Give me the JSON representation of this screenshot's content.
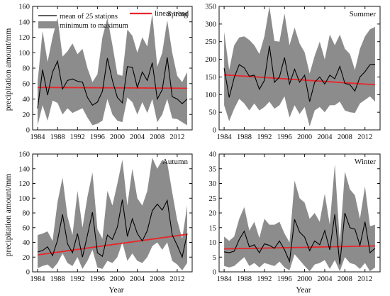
{
  "figure": {
    "ylabel": "precipitation amount/mm",
    "xlabel": "Year",
    "legend": {
      "mean_label": "mean of 25 stations",
      "range_label": "minimum to maximum",
      "trend_label": "linear trend"
    }
  },
  "colors": {
    "band": "#8c8c8c",
    "mean": "#000000",
    "trend": "#e8262b",
    "axis": "#111111"
  },
  "chart_data": [
    {
      "type": "area",
      "title": "Spring",
      "x": [
        1984,
        1985,
        1986,
        1987,
        1988,
        1989,
        1990,
        1991,
        1992,
        1993,
        1994,
        1995,
        1996,
        1997,
        1998,
        1999,
        2000,
        2001,
        2002,
        2003,
        2004,
        2005,
        2006,
        2007,
        2008,
        2009,
        2010,
        2011,
        2012,
        2013,
        2014
      ],
      "series": [
        {
          "name": "mean of 25 stations",
          "values": [
            28,
            78,
            45,
            75,
            89,
            53,
            64,
            66,
            63,
            62,
            42,
            32,
            36,
            50,
            93,
            64,
            42,
            35,
            82,
            81,
            55,
            75,
            64,
            87,
            40,
            52,
            94,
            43,
            40,
            34,
            40
          ]
        },
        {
          "name": "minimum to maximum",
          "values_min": [
            6,
            32,
            12,
            38,
            35,
            20,
            28,
            22,
            25,
            28,
            16,
            6,
            8,
            12,
            40,
            20,
            12,
            10,
            42,
            36,
            20,
            36,
            22,
            40,
            10,
            20,
            40,
            15,
            14,
            10,
            6
          ],
          "values_max": [
            62,
            128,
            88,
            120,
            145,
            95,
            102,
            112,
            98,
            105,
            80,
            62,
            72,
            120,
            145,
            110,
            72,
            70,
            130,
            122,
            100,
            120,
            108,
            150,
            82,
            100,
            142,
            100,
            70,
            62,
            75
          ]
        }
      ],
      "trend": {
        "name": "linear trend",
        "start": [
          1984,
          55
        ],
        "end": [
          2014,
          54
        ]
      },
      "xlim": [
        1983,
        2015
      ],
      "ylim": [
        0,
        160
      ],
      "xticks": [
        1984,
        1988,
        1992,
        1996,
        2000,
        2004,
        2008,
        2012
      ],
      "yticks": [
        0,
        20,
        40,
        60,
        80,
        100,
        120,
        140,
        160
      ]
    },
    {
      "type": "area",
      "title": "Summer",
      "x": [
        1984,
        1985,
        1986,
        1987,
        1988,
        1989,
        1990,
        1991,
        1992,
        1993,
        1994,
        1995,
        1996,
        1997,
        1998,
        1999,
        2000,
        2001,
        2002,
        2003,
        2004,
        2005,
        2006,
        2007,
        2008,
        2009,
        2010,
        2011,
        2012,
        2013,
        2014
      ],
      "series": [
        {
          "name": "mean of 25 stations",
          "values": [
            175,
            92,
            148,
            185,
            176,
            152,
            155,
            115,
            140,
            238,
            135,
            150,
            205,
            130,
            172,
            135,
            155,
            80,
            135,
            150,
            130,
            155,
            145,
            180,
            132,
            128,
            110,
            150,
            165,
            185,
            186
          ]
        },
        {
          "name": "minimum to maximum",
          "values_min": [
            70,
            25,
            60,
            88,
            75,
            55,
            75,
            55,
            65,
            80,
            60,
            70,
            95,
            35,
            70,
            45,
            65,
            10,
            55,
            65,
            50,
            70,
            70,
            80,
            55,
            50,
            48,
            75,
            85,
            95,
            80
          ],
          "values_max": [
            278,
            170,
            240,
            262,
            265,
            255,
            240,
            215,
            265,
            350,
            252,
            250,
            330,
            240,
            290,
            245,
            220,
            160,
            210,
            250,
            200,
            270,
            240,
            270,
            230,
            215,
            170,
            230,
            265,
            285,
            292
          ]
        }
      ],
      "trend": {
        "name": "linear trend",
        "start": [
          1984,
          156
        ],
        "end": [
          2014,
          128
        ]
      },
      "xlim": [
        1983,
        2015
      ],
      "ylim": [
        0,
        350
      ],
      "xticks": [
        1984,
        1988,
        1992,
        1996,
        2000,
        2004,
        2008,
        2012
      ],
      "yticks": [
        0,
        50,
        100,
        150,
        200,
        250,
        300,
        350
      ]
    },
    {
      "type": "area",
      "title": "Autumn",
      "x": [
        1984,
        1985,
        1986,
        1987,
        1988,
        1989,
        1990,
        1991,
        1992,
        1993,
        1994,
        1995,
        1996,
        1997,
        1998,
        1999,
        2000,
        2001,
        2002,
        2003,
        2004,
        2005,
        2006,
        2007,
        2008,
        2009,
        2010,
        2011,
        2012,
        2013,
        2014
      ],
      "series": [
        {
          "name": "mean of 25 stations",
          "values": [
            27,
            29,
            34,
            22,
            43,
            78,
            38,
            26,
            52,
            20,
            50,
            81,
            26,
            21,
            50,
            44,
            61,
            98,
            48,
            72,
            52,
            42,
            56,
            83,
            92,
            84,
            97,
            50,
            36,
            20,
            52
          ]
        },
        {
          "name": "minimum to maximum",
          "values_min": [
            5,
            8,
            10,
            4,
            12,
            25,
            12,
            8,
            20,
            4,
            15,
            30,
            6,
            4,
            15,
            12,
            20,
            40,
            15,
            25,
            15,
            12,
            20,
            35,
            40,
            30,
            40,
            15,
            10,
            2,
            12
          ],
          "values_max": [
            50,
            52,
            55,
            42,
            95,
            128,
            75,
            50,
            110,
            60,
            102,
            135,
            58,
            45,
            110,
            90,
            120,
            152,
            90,
            140,
            100,
            90,
            110,
            155,
            140,
            152,
            148,
            108,
            70,
            45,
            90
          ]
        }
      ],
      "trend": {
        "name": "linear trend",
        "start": [
          1984,
          23
        ],
        "end": [
          2014,
          51
        ]
      },
      "xlim": [
        1983,
        2015
      ],
      "ylim": [
        0,
        160
      ],
      "xticks": [
        1984,
        1988,
        1992,
        1996,
        2000,
        2004,
        2008,
        2012
      ],
      "yticks": [
        0,
        20,
        40,
        60,
        80,
        100,
        120,
        140,
        160
      ]
    },
    {
      "type": "area",
      "title": "Winter",
      "x": [
        1984,
        1985,
        1986,
        1987,
        1988,
        1989,
        1990,
        1991,
        1992,
        1993,
        1994,
        1995,
        1996,
        1997,
        1998,
        1999,
        2000,
        2001,
        2002,
        2003,
        2004,
        2005,
        2006,
        2007,
        2008,
        2009,
        2010,
        2011,
        2012,
        2013,
        2014
      ],
      "series": [
        {
          "name": "mean of 25 stations",
          "values": [
            6.8,
            6.5,
            7.0,
            11.0,
            13.8,
            8.5,
            9.2,
            6.5,
            9.5,
            9.0,
            8.0,
            10.5,
            7.5,
            3.5,
            17.8,
            13.5,
            11.8,
            7.2,
            10.5,
            9.2,
            14.0,
            7.5,
            19.5,
            2.5,
            20.0,
            15.0,
            14.5,
            9.0,
            17.0,
            6.5,
            8.0
          ]
        },
        {
          "name": "minimum to maximum",
          "values_min": [
            2.0,
            1.5,
            2.0,
            3.5,
            5.0,
            2.0,
            3.0,
            1.5,
            3.0,
            2.5,
            2.0,
            3.5,
            1.5,
            0.5,
            6.0,
            4.0,
            2.0,
            0.2,
            2.5,
            3.0,
            4.0,
            1.0,
            4.0,
            0.2,
            5.0,
            3.0,
            2.5,
            1.0,
            3.0,
            0.2,
            1.5
          ],
          "values_max": [
            12.0,
            10.5,
            12.0,
            18.0,
            22.0,
            14.0,
            17.0,
            11.5,
            18.0,
            16.0,
            16.0,
            17.0,
            13.0,
            10.0,
            31.0,
            25.0,
            23.5,
            18.0,
            20.0,
            17.0,
            26.5,
            16.0,
            36.5,
            10.0,
            34.0,
            28.0,
            26.0,
            18.0,
            29.0,
            15.5,
            16.0
          ]
        }
      ],
      "trend": {
        "name": "linear trend",
        "start": [
          1984,
          7.8
        ],
        "end": [
          2014,
          8.8
        ]
      },
      "xlim": [
        1983,
        2015
      ],
      "ylim": [
        0,
        40
      ],
      "xticks": [
        1984,
        1988,
        1992,
        1996,
        2000,
        2004,
        2008,
        2012
      ],
      "yticks": [
        0,
        5,
        10,
        15,
        20,
        25,
        30,
        35,
        40
      ]
    }
  ]
}
